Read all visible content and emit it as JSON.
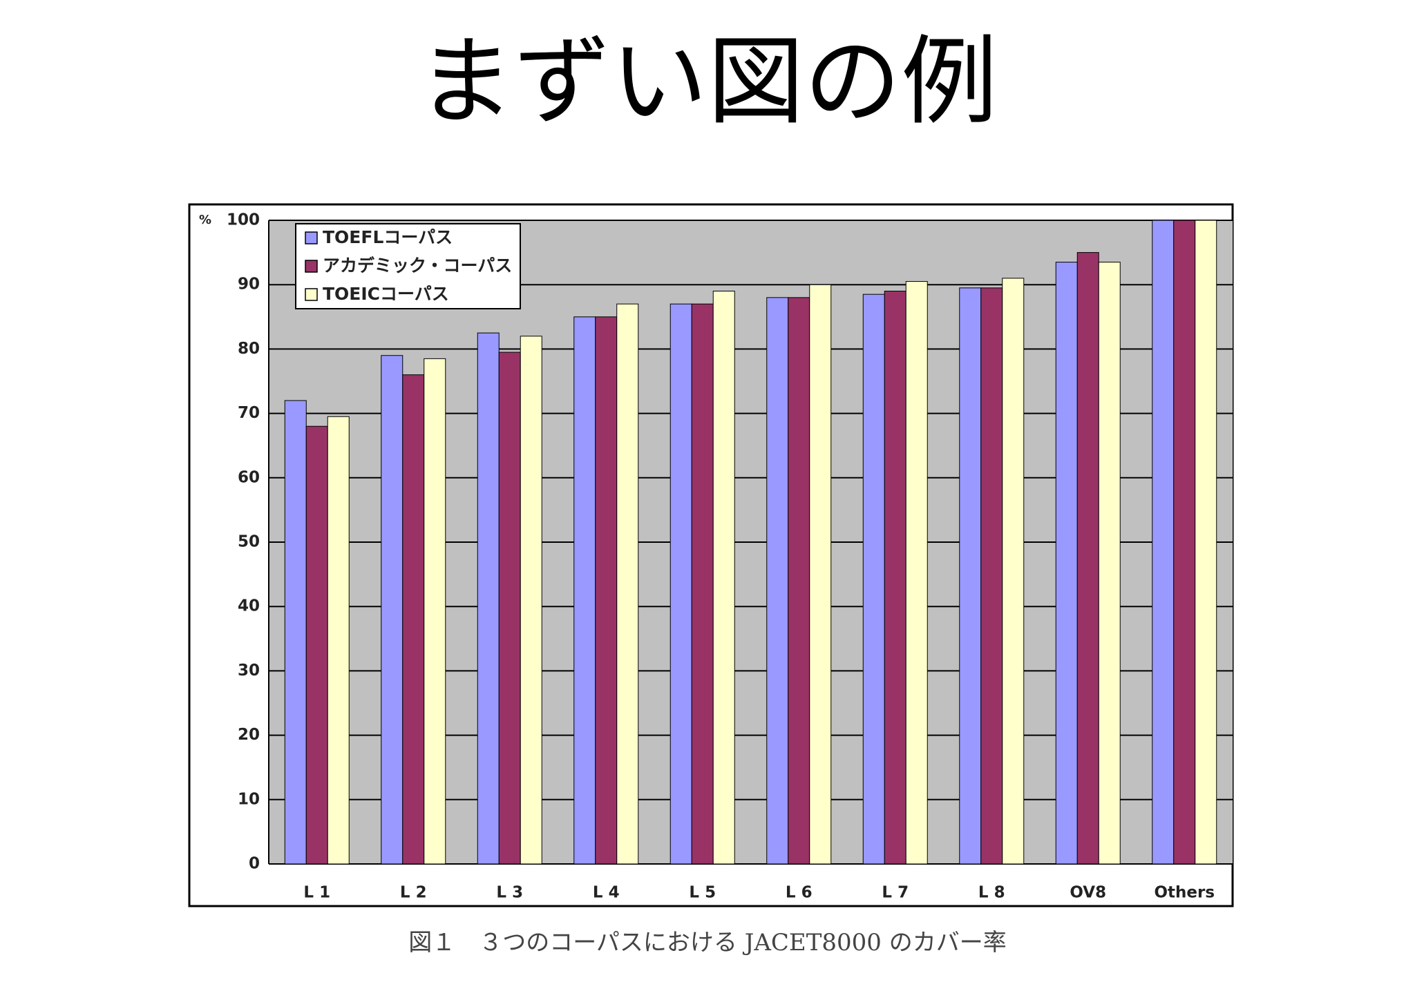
{
  "chart_data": {
    "type": "bar",
    "title": "まずい図の例",
    "caption": "図１　３つのコーパスにおける JACET8000 のカバー率",
    "y_unit": "%",
    "categories": [
      "L 1",
      "L 2",
      "L 3",
      "L 4",
      "L 5",
      "L 6",
      "L 7",
      "L 8",
      "OV8",
      "Others"
    ],
    "series": [
      {
        "name": "TOEFLコーパス",
        "color": "#9999ff",
        "values": [
          72,
          79,
          82.5,
          85,
          87,
          88,
          88.5,
          89.5,
          93.5,
          100
        ]
      },
      {
        "name": "アカデミック・コーパス",
        "color": "#993366",
        "values": [
          68,
          76,
          79.5,
          85,
          87,
          88,
          89,
          89.5,
          95,
          100
        ]
      },
      {
        "name": "TOEICコーパス",
        "color": "#ffffcc",
        "values": [
          69.5,
          78.5,
          82,
          87,
          89,
          90,
          90.5,
          91,
          93.5,
          100
        ]
      }
    ],
    "ylim": [
      0,
      100
    ],
    "yticks": [
      0,
      10,
      20,
      30,
      40,
      50,
      60,
      70,
      80,
      90,
      100
    ],
    "grid": true,
    "legend": "top-left"
  }
}
